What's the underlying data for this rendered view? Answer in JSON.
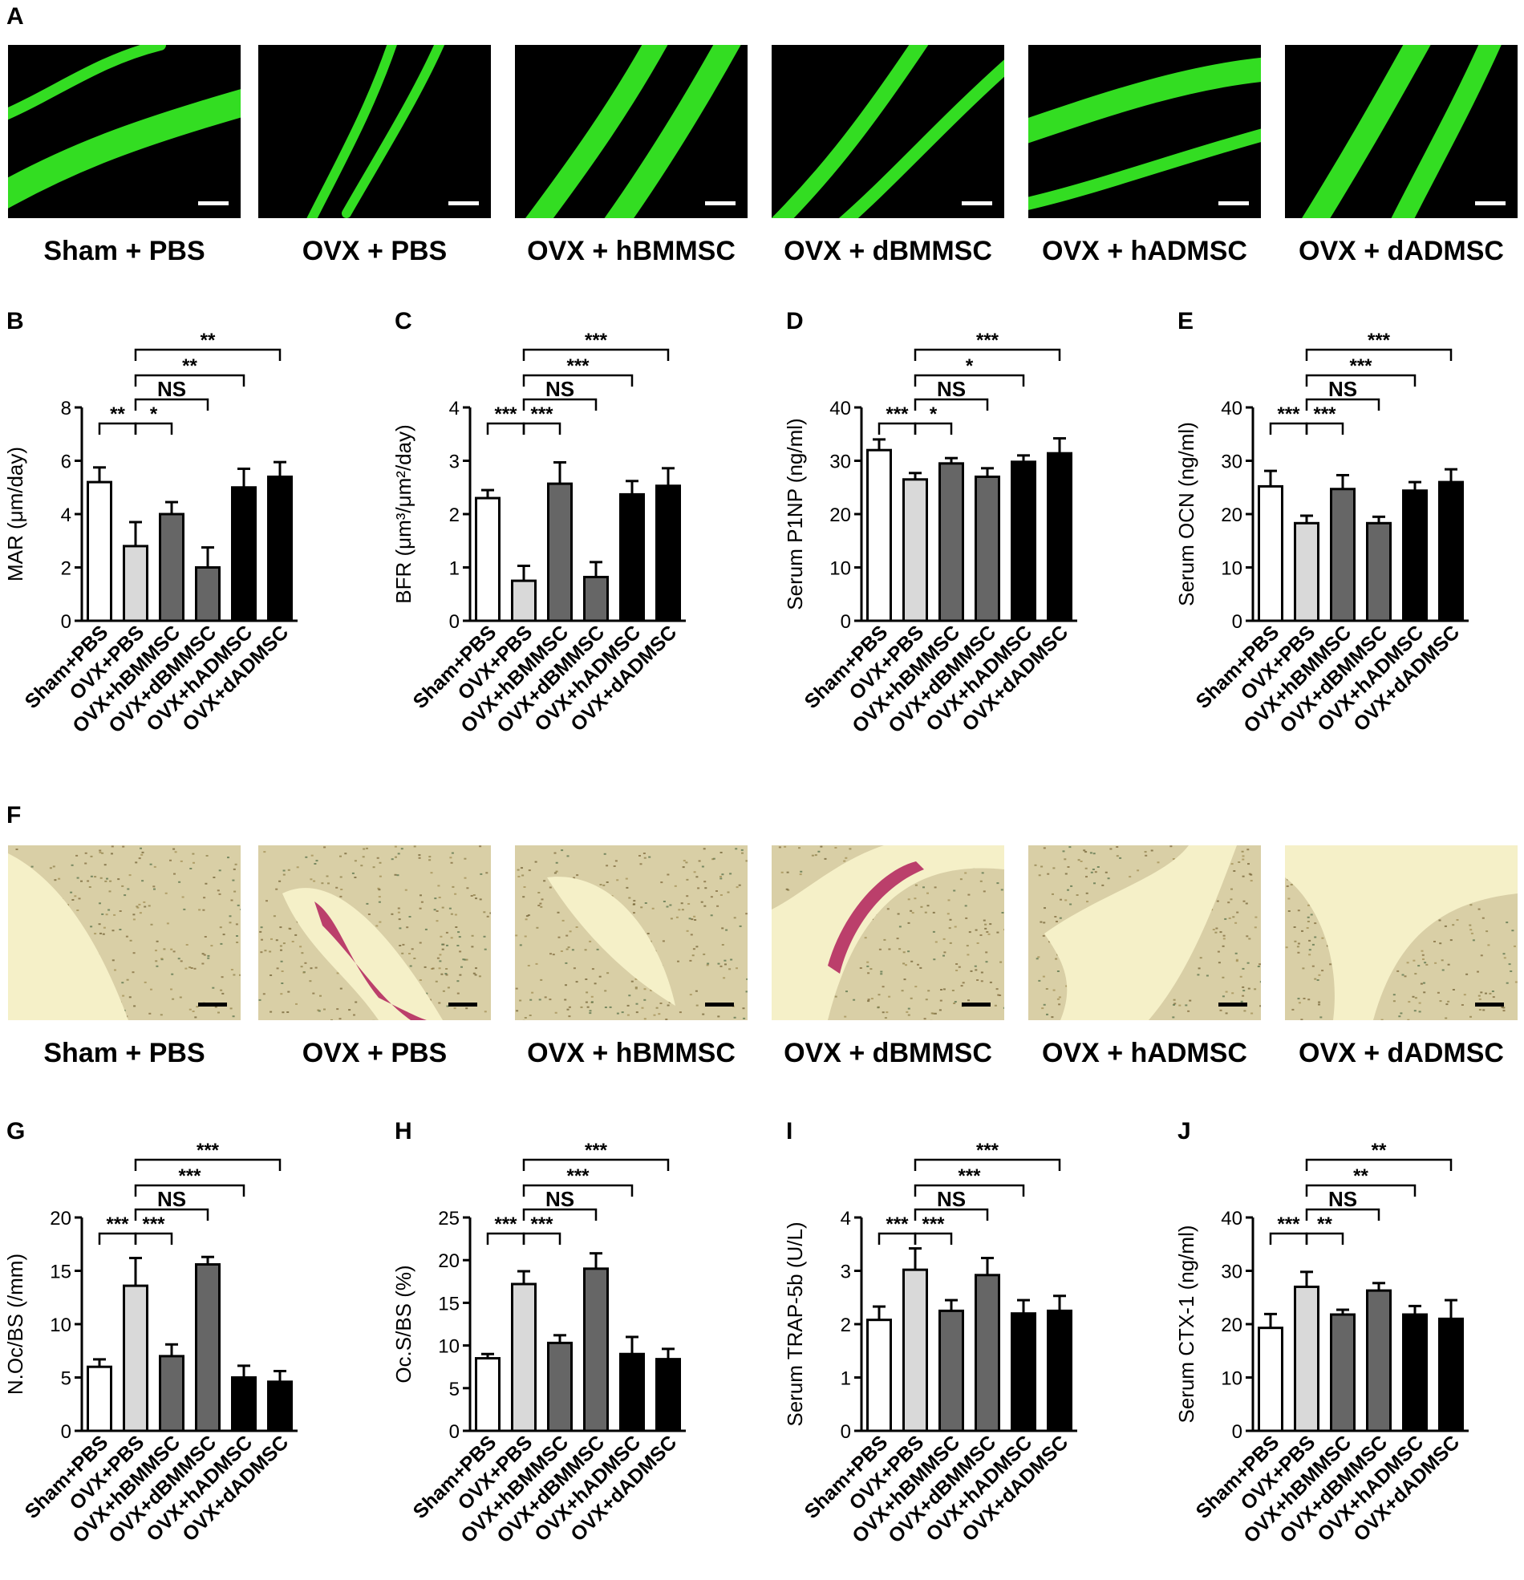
{
  "panels": {
    "A": {
      "letter": "A",
      "images": [
        {
          "caption": "Sham + PBS",
          "kind": "fluor"
        },
        {
          "caption": "OVX + PBS",
          "kind": "fluor"
        },
        {
          "caption": "OVX + hBMMSC",
          "kind": "fluor"
        },
        {
          "caption": "OVX + dBMMSC",
          "kind": "fluor"
        },
        {
          "caption": "OVX + hADMSC",
          "kind": "fluor"
        },
        {
          "caption": "OVX + dADMSC",
          "kind": "fluor"
        }
      ]
    },
    "F": {
      "letter": "F",
      "images": [
        {
          "caption": "Sham + PBS",
          "kind": "trap"
        },
        {
          "caption": "OVX + PBS",
          "kind": "trap"
        },
        {
          "caption": "OVX + hBMMSC",
          "kind": "trap"
        },
        {
          "caption": "OVX + dBMMSC",
          "kind": "trap"
        },
        {
          "caption": "OVX + hADMSC",
          "kind": "trap"
        },
        {
          "caption": "OVX + dADMSC",
          "kind": "trap"
        }
      ]
    }
  },
  "colors": {
    "fluor_bg": "#000000",
    "fluor_band": "#33dd22",
    "trap_bg": "#d9cfa6",
    "trap_bone": "#f5f0c8",
    "trap_stain": "#b0205a",
    "bar_fills": [
      "#ffffff",
      "#d9d9d9",
      "#666666",
      "#666666",
      "#000000",
      "#000000"
    ]
  },
  "chart_data": [
    {
      "letter": "B",
      "type": "bar",
      "ylabel": "MAR (μm/day)",
      "ylim": [
        0,
        8
      ],
      "yticks": [
        0,
        2,
        4,
        6,
        8
      ],
      "categories": [
        "Sham+PBS",
        "OVX+PBS",
        "OVX+hBMMSC",
        "OVX+dBMMSC",
        "OVX+hADMSC",
        "OVX+dADMSC"
      ],
      "values": [
        5.2,
        2.8,
        4.0,
        2.0,
        5.0,
        5.4
      ],
      "errors": [
        0.55,
        0.9,
        0.45,
        0.75,
        0.7,
        0.55
      ],
      "comparisons": [
        {
          "from": 0,
          "to": 1,
          "label": "**"
        },
        {
          "from": 1,
          "to": 2,
          "label": "*"
        },
        {
          "from": 1,
          "to": 3,
          "label": "NS"
        },
        {
          "from": 1,
          "to": 4,
          "label": "**"
        },
        {
          "from": 1,
          "to": 5,
          "label": "**"
        }
      ]
    },
    {
      "letter": "C",
      "type": "bar",
      "ylabel": "BFR (μm³/μm²/day)",
      "ylim": [
        0,
        4
      ],
      "yticks": [
        0,
        1,
        2,
        3,
        4
      ],
      "categories": [
        "Sham+PBS",
        "OVX+PBS",
        "OVX+hBMMSC",
        "OVX+dBMMSC",
        "OVX+hADMSC",
        "OVX+dADMSC"
      ],
      "values": [
        2.3,
        0.75,
        2.57,
        0.82,
        2.37,
        2.53
      ],
      "errors": [
        0.15,
        0.28,
        0.4,
        0.28,
        0.25,
        0.33
      ],
      "comparisons": [
        {
          "from": 0,
          "to": 1,
          "label": "***"
        },
        {
          "from": 1,
          "to": 2,
          "label": "***"
        },
        {
          "from": 1,
          "to": 3,
          "label": "NS"
        },
        {
          "from": 1,
          "to": 4,
          "label": "***"
        },
        {
          "from": 1,
          "to": 5,
          "label": "***"
        }
      ]
    },
    {
      "letter": "D",
      "type": "bar",
      "ylabel": "Serum P1NP (ng/ml)",
      "ylim": [
        0,
        40
      ],
      "yticks": [
        0,
        10,
        20,
        30,
        40
      ],
      "categories": [
        "Sham+PBS",
        "OVX+PBS",
        "OVX+hBMMSC",
        "OVX+dBMMSC",
        "OVX+hADMSC",
        "OVX+dADMSC"
      ],
      "values": [
        32.0,
        26.5,
        29.5,
        27.0,
        29.8,
        31.4
      ],
      "errors": [
        2.0,
        1.2,
        1.0,
        1.6,
        1.2,
        2.8
      ],
      "comparisons": [
        {
          "from": 0,
          "to": 1,
          "label": "***"
        },
        {
          "from": 1,
          "to": 2,
          "label": "*"
        },
        {
          "from": 1,
          "to": 3,
          "label": "NS"
        },
        {
          "from": 1,
          "to": 4,
          "label": "*"
        },
        {
          "from": 1,
          "to": 5,
          "label": "***"
        }
      ]
    },
    {
      "letter": "E",
      "type": "bar",
      "ylabel": "Serum OCN (ng/ml)",
      "ylim": [
        0,
        40
      ],
      "yticks": [
        0,
        10,
        20,
        30,
        40
      ],
      "categories": [
        "Sham+PBS",
        "OVX+PBS",
        "OVX+hBMMSC",
        "OVX+dBMMSC",
        "OVX+hADMSC",
        "OVX+dADMSC"
      ],
      "values": [
        25.2,
        18.3,
        24.7,
        18.3,
        24.4,
        26.0
      ],
      "errors": [
        2.9,
        1.4,
        2.6,
        1.2,
        1.6,
        2.4
      ],
      "comparisons": [
        {
          "from": 0,
          "to": 1,
          "label": "***"
        },
        {
          "from": 1,
          "to": 2,
          "label": "***"
        },
        {
          "from": 1,
          "to": 3,
          "label": "NS"
        },
        {
          "from": 1,
          "to": 4,
          "label": "***"
        },
        {
          "from": 1,
          "to": 5,
          "label": "***"
        }
      ]
    },
    {
      "letter": "G",
      "type": "bar",
      "ylabel": "N.Oc/BS (/mm)",
      "ylim": [
        0,
        20
      ],
      "yticks": [
        0,
        5,
        10,
        15,
        20
      ],
      "categories": [
        "Sham+PBS",
        "OVX+PBS",
        "OVX+hBMMSC",
        "OVX+dBMMSC",
        "OVX+hADMSC",
        "OVX+dADMSC"
      ],
      "values": [
        6.0,
        13.6,
        7.0,
        15.6,
        5.0,
        4.6
      ],
      "errors": [
        0.7,
        2.6,
        1.1,
        0.7,
        1.1,
        1.0
      ],
      "comparisons": [
        {
          "from": 0,
          "to": 1,
          "label": "***"
        },
        {
          "from": 1,
          "to": 2,
          "label": "***"
        },
        {
          "from": 1,
          "to": 3,
          "label": "NS"
        },
        {
          "from": 1,
          "to": 4,
          "label": "***"
        },
        {
          "from": 1,
          "to": 5,
          "label": "***"
        }
      ]
    },
    {
      "letter": "H",
      "type": "bar",
      "ylabel": "Oc.S/BS (%)",
      "ylim": [
        0,
        25
      ],
      "yticks": [
        0,
        5,
        10,
        15,
        20,
        25
      ],
      "categories": [
        "Sham+PBS",
        "OVX+PBS",
        "OVX+hBMMSC",
        "OVX+dBMMSC",
        "OVX+hADMSC",
        "OVX+dADMSC"
      ],
      "values": [
        8.5,
        17.2,
        10.3,
        19.0,
        9.0,
        8.4
      ],
      "errors": [
        0.5,
        1.5,
        0.9,
        1.8,
        2.0,
        1.2
      ],
      "comparisons": [
        {
          "from": 0,
          "to": 1,
          "label": "***"
        },
        {
          "from": 1,
          "to": 2,
          "label": "***"
        },
        {
          "from": 1,
          "to": 3,
          "label": "NS"
        },
        {
          "from": 1,
          "to": 4,
          "label": "***"
        },
        {
          "from": 1,
          "to": 5,
          "label": "***"
        }
      ]
    },
    {
      "letter": "I",
      "type": "bar",
      "ylabel": "Serum TRAP-5b (U/L)",
      "ylim": [
        0,
        4
      ],
      "yticks": [
        0,
        1,
        2,
        3,
        4
      ],
      "categories": [
        "Sham+PBS",
        "OVX+PBS",
        "OVX+hBMMSC",
        "OVX+dBMMSC",
        "OVX+hADMSC",
        "OVX+dADMSC"
      ],
      "values": [
        2.08,
        3.02,
        2.25,
        2.92,
        2.2,
        2.25
      ],
      "errors": [
        0.25,
        0.4,
        0.2,
        0.32,
        0.25,
        0.28
      ],
      "comparisons": [
        {
          "from": 0,
          "to": 1,
          "label": "***"
        },
        {
          "from": 1,
          "to": 2,
          "label": "***"
        },
        {
          "from": 1,
          "to": 3,
          "label": "NS"
        },
        {
          "from": 1,
          "to": 4,
          "label": "***"
        },
        {
          "from": 1,
          "to": 5,
          "label": "***"
        }
      ]
    },
    {
      "letter": "J",
      "type": "bar",
      "ylabel": "Serum CTX-1 (ng/ml)",
      "ylim": [
        0,
        40
      ],
      "yticks": [
        0,
        10,
        20,
        30,
        40
      ],
      "categories": [
        "Sham+PBS",
        "OVX+PBS",
        "OVX+hBMMSC",
        "OVX+dBMMSC",
        "OVX+hADMSC",
        "OVX+dADMSC"
      ],
      "values": [
        19.3,
        27.0,
        21.8,
        26.3,
        21.8,
        21.0
      ],
      "errors": [
        2.6,
        2.8,
        0.9,
        1.4,
        1.6,
        3.5
      ],
      "comparisons": [
        {
          "from": 0,
          "to": 1,
          "label": "***"
        },
        {
          "from": 1,
          "to": 2,
          "label": "**"
        },
        {
          "from": 1,
          "to": 3,
          "label": "NS"
        },
        {
          "from": 1,
          "to": 4,
          "label": "**"
        },
        {
          "from": 1,
          "to": 5,
          "label": "**"
        }
      ]
    }
  ]
}
